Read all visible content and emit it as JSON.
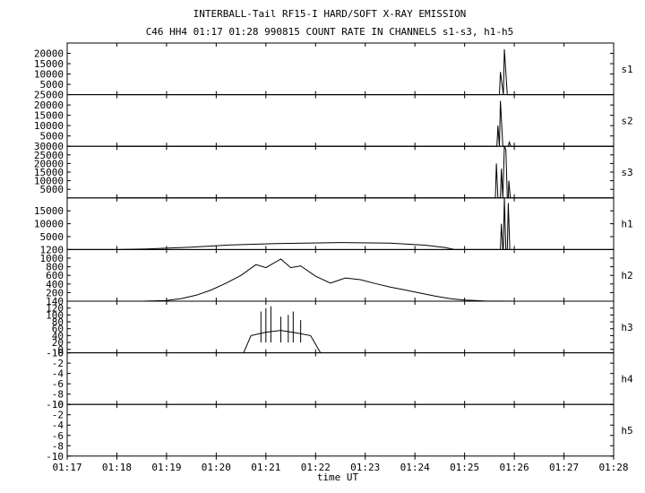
{
  "chart_data": {
    "type": "line",
    "title": "INTERBALL-Tail RF15-I HARD/SOFT X-RAY EMISSION",
    "subtitle": "C46 HH4 01:17 01:28 990815  COUNT RATE IN CHANNELS s1-s3, h1-h5",
    "xlabel": "time UT",
    "x_ticks": [
      "01:17",
      "01:18",
      "01:19",
      "01:20",
      "01:21",
      "01:22",
      "01:23",
      "01:24",
      "01:25",
      "01:26",
      "01:27",
      "01:28"
    ],
    "xlim": [
      "01:17",
      "01:28"
    ],
    "grid": false,
    "panels": [
      {
        "name": "s1",
        "ylim": [
          0,
          25000
        ],
        "yticks": [
          5000,
          10000,
          15000,
          20000
        ],
        "values": [
          [
            1.0,
            0
          ],
          [
            8.7,
            0
          ],
          [
            8.72,
            11000
          ],
          [
            8.78,
            0
          ],
          [
            8.8,
            22000
          ],
          [
            8.86,
            0
          ],
          [
            9.0,
            0
          ],
          [
            11.0,
            0
          ]
        ]
      },
      {
        "name": "s2",
        "ylim": [
          0,
          25000
        ],
        "yticks": [
          5000,
          10000,
          15000,
          20000,
          25000
        ],
        "values": [
          [
            1.0,
            0
          ],
          [
            8.65,
            0
          ],
          [
            8.67,
            10000
          ],
          [
            8.7,
            0
          ],
          [
            8.72,
            22000
          ],
          [
            8.77,
            0
          ],
          [
            8.88,
            0
          ],
          [
            8.9,
            2000
          ],
          [
            8.93,
            0
          ],
          [
            11.0,
            0
          ]
        ]
      },
      {
        "name": "s3",
        "ylim": [
          0,
          30000
        ],
        "yticks": [
          5000,
          10000,
          15000,
          20000,
          25000,
          30000
        ],
        "values": [
          [
            1.0,
            0
          ],
          [
            8.62,
            0
          ],
          [
            8.64,
            20000
          ],
          [
            8.67,
            0
          ],
          [
            8.72,
            0
          ],
          [
            8.74,
            17000
          ],
          [
            8.77,
            0
          ],
          [
            8.8,
            30000
          ],
          [
            8.83,
            28000
          ],
          [
            8.86,
            0
          ],
          [
            8.88,
            0
          ],
          [
            8.89,
            10000
          ],
          [
            8.92,
            0
          ],
          [
            11.0,
            0
          ]
        ]
      },
      {
        "name": "h1",
        "ylim": [
          0,
          20000
        ],
        "yticks": [
          5000,
          10000,
          15000
        ],
        "values": [
          [
            0.0,
            0
          ],
          [
            0.5,
            0
          ],
          [
            1.0,
            0
          ],
          [
            1.6,
            200
          ],
          [
            2.5,
            900
          ],
          [
            3.3,
            1800
          ],
          [
            4.2,
            2300
          ],
          [
            5.5,
            2700
          ],
          [
            6.5,
            2500
          ],
          [
            7.2,
            1700
          ],
          [
            7.6,
            800
          ],
          [
            7.8,
            0
          ],
          [
            8.0,
            0
          ],
          [
            8.72,
            0
          ],
          [
            8.74,
            10000
          ],
          [
            8.77,
            0
          ],
          [
            8.78,
            0
          ],
          [
            8.8,
            20000
          ],
          [
            8.83,
            0
          ],
          [
            8.86,
            0
          ],
          [
            8.88,
            18000
          ],
          [
            8.91,
            0
          ],
          [
            11.0,
            0
          ]
        ]
      },
      {
        "name": "h2",
        "ylim": [
          0,
          1200
        ],
        "yticks": [
          200,
          400,
          600,
          800,
          1000,
          1200
        ],
        "values": [
          [
            0.0,
            0
          ],
          [
            1.0,
            0
          ],
          [
            1.5,
            0
          ],
          [
            2.0,
            15
          ],
          [
            2.3,
            60
          ],
          [
            2.6,
            140
          ],
          [
            2.9,
            260
          ],
          [
            3.2,
            420
          ],
          [
            3.5,
            600
          ],
          [
            3.8,
            850
          ],
          [
            4.0,
            780
          ],
          [
            4.3,
            980
          ],
          [
            4.5,
            780
          ],
          [
            4.7,
            820
          ],
          [
            5.0,
            580
          ],
          [
            5.3,
            420
          ],
          [
            5.6,
            540
          ],
          [
            5.9,
            500
          ],
          [
            6.2,
            410
          ],
          [
            6.5,
            330
          ],
          [
            6.8,
            260
          ],
          [
            7.1,
            190
          ],
          [
            7.4,
            120
          ],
          [
            7.7,
            60
          ],
          [
            8.0,
            25
          ],
          [
            8.4,
            6
          ],
          [
            9.0,
            0
          ],
          [
            11.0,
            0
          ]
        ]
      },
      {
        "name": "h3",
        "ylim": [
          -10,
          140
        ],
        "yticks": [
          -10,
          0,
          20,
          40,
          60,
          80,
          100,
          120,
          140
        ],
        "values": [
          [
            3.55,
            -10
          ],
          [
            3.7,
            40
          ],
          [
            4.0,
            50
          ],
          [
            4.3,
            55
          ],
          [
            4.6,
            48
          ],
          [
            4.9,
            40
          ],
          [
            5.1,
            -10
          ]
        ],
        "spikes": [
          [
            3.9,
            110
          ],
          [
            4.0,
            120
          ],
          [
            4.1,
            125
          ],
          [
            4.3,
            95
          ],
          [
            4.45,
            100
          ],
          [
            4.55,
            110
          ],
          [
            4.7,
            85
          ]
        ]
      },
      {
        "name": "h4",
        "ylim": [
          -10,
          0
        ],
        "yticks": [
          -10,
          -8,
          -6,
          -4,
          -2,
          0
        ],
        "values": []
      },
      {
        "name": "h5",
        "ylim": [
          -10,
          0
        ],
        "yticks": [
          -10,
          -8,
          -6,
          -4,
          -2,
          0
        ],
        "values": []
      }
    ]
  }
}
